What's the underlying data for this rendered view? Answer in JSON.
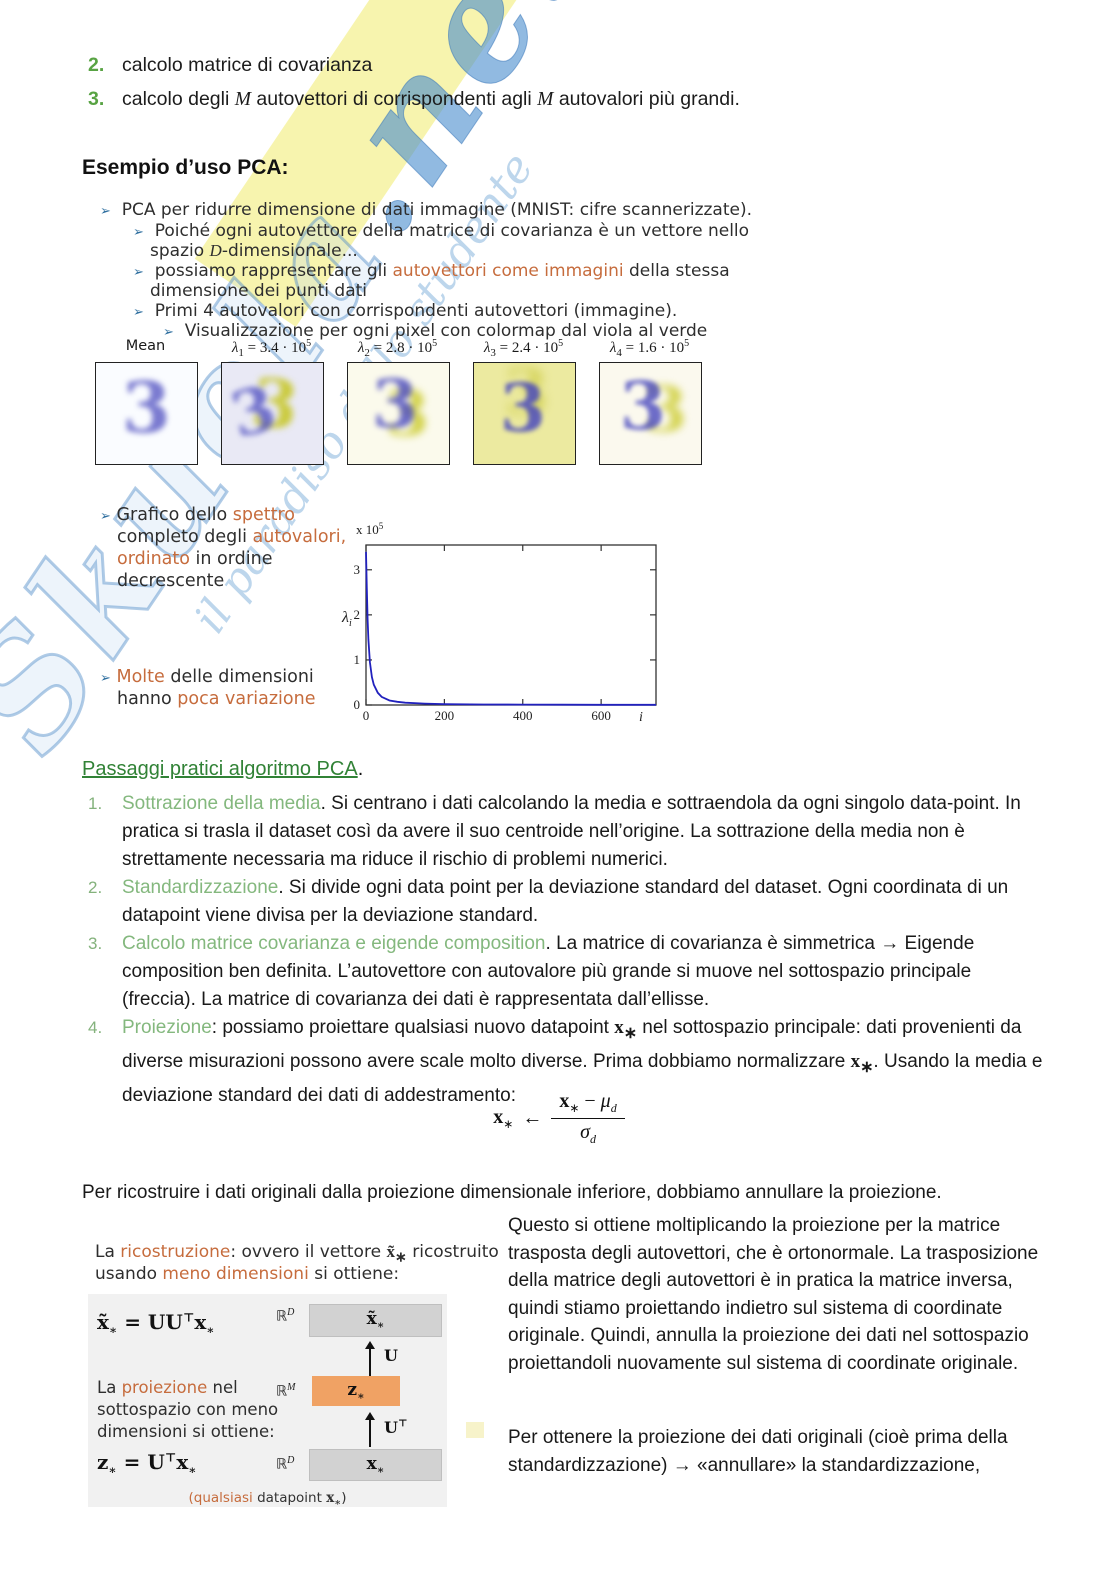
{
  "watermark": {
    "big_left": "Skuola",
    "big_right": ".net",
    "slogan": "il paradiso dello studente"
  },
  "misc": {
    "bullet": "➢"
  },
  "top_list": {
    "item2_num": "2.",
    "item2_text": "calcolo matrice di covarianza",
    "item3_num": "3.",
    "item3_p0": "calcolo degli ",
    "item3_m1": "M",
    "item3_p1": " autovettori di corrispondenti agli ",
    "item3_m2": "M",
    "item3_p2": " autovalori più grandi."
  },
  "example": {
    "heading": "Esempio d’uso PCA",
    "colon": ":",
    "b1": "PCA per ridurre dimensione di dati immagine (MNIST: cifre scannerizzate).",
    "b2_l1": "Poiché ogni autovettore della matrice di covarianza è un vettore nello",
    "b2_pre": "spazio ",
    "b2_D": "D",
    "b2_post": "-dimensionale...",
    "b3_pre": "possiamo rappresentare gli ",
    "b3_orange": "autovettori come immagini",
    "b3_post": " della stessa",
    "b3_l2": "dimensione dei punti dati",
    "b4": "Primi 4 autovalori con corrispondenti autovettori (immagine).",
    "b5": "Visualizzazione per ogni pixel con colormap dal viola al verde"
  },
  "eigen_images": {
    "digit": "3",
    "items": [
      {
        "name": "Mean",
        "style": "background:#fafcff"
      },
      {
        "sym": "λ",
        "sub": "1",
        "eq": " = 3.4 · 10",
        "exp": "5",
        "style": "background:#e9e9f5"
      },
      {
        "sym": "λ",
        "sub": "2",
        "eq": " = 2.8 · 10",
        "exp": "5",
        "style": "background:#fbfaec"
      },
      {
        "sym": "λ",
        "sub": "3",
        "eq": " = 2.4 · 10",
        "exp": "5",
        "style": "background:#eceaa0"
      },
      {
        "sym": "λ",
        "sub": "4",
        "eq": " = 1.6 · 10",
        "exp": "5",
        "style": "background:#fbf9ee"
      }
    ]
  },
  "spectrum": {
    "g_pre": "Grafico dello ",
    "g_o1": "spettro",
    "g_l2_pre": "completo degli ",
    "g_o2": "autovalori,",
    "g_l3_o": "ordinato",
    "g_l3_post": " in ordine",
    "g_l4": "decrescente",
    "m_o1": "Molte",
    "m_p1": " delle dimensioni",
    "m_l2_pre": "hanno ",
    "m_o2": "poca variazione"
  },
  "chart_data": {
    "type": "line",
    "title": "Spettro completo degli autovalori (ordine decrescente)",
    "xlabel": "i",
    "ylabel_sym": "λ",
    "ylabel_sub": "i",
    "scale_base": "x 10",
    "scale_exp": "5",
    "y_scale": "1e5",
    "xlim": [
      0,
      740
    ],
    "ylim": [
      0,
      3.55
    ],
    "xticks": [
      0,
      200,
      400,
      600
    ],
    "yticks": [
      0,
      1,
      2,
      3
    ],
    "x": [
      0,
      2,
      4,
      6,
      10,
      15,
      20,
      30,
      40,
      60,
      80,
      100,
      150,
      200,
      300,
      400,
      500,
      600,
      700,
      740
    ],
    "y": [
      3.4,
      2.6,
      1.9,
      1.45,
      0.95,
      0.62,
      0.45,
      0.27,
      0.18,
      0.1,
      0.07,
      0.05,
      0.03,
      0.02,
      0.012,
      0.008,
      0.006,
      0.005,
      0.004,
      0.004
    ],
    "line_color": "#2121bd",
    "grid": false,
    "legend": null
  },
  "steps": {
    "heading": "Passaggi pratici algoritmo PCA",
    "period": ".",
    "items": [
      {
        "num": "1.",
        "lead": "Sottrazione della media",
        "sep": ". ",
        "text": "Si centrano i dati calcolando la media e sottraendola da ogni singolo data-point. In pratica si trasla il dataset così da avere il suo centroide nell’origine. La sottrazione della media non è strettamente necessaria ma riduce il rischio di problemi numerici."
      },
      {
        "num": "2.",
        "lead": "Standardizzazione",
        "sep": ". ",
        "text": "Si divide ogni data point per la deviazione standard del dataset. Ogni coordinata di un datapoint viene divisa per la deviazione standard."
      },
      {
        "num": "3.",
        "lead": "Calcolo matrice covarianza e eigende composition",
        "sep": ". ",
        "text": "La matrice di covarianza è simmetrica → Eigende composition ben definita. L’autovettore con autovalore più grande si muove nel sottospazio principale (freccia). La matrice di covarianza dei dati è rappresentata dall’ellisse."
      },
      {
        "num": "4.",
        "lead": "Proiezione",
        "sep": ": ",
        "p0": "possiamo proiettare qualsiasi nuovo datapoint ",
        "x1": "x",
        "s1": "∗",
        "p1": " nel sottospazio principale: dati provenienti da diverse misurazioni possono avere scale molto diverse. Prima dobbiamo normalizzare ",
        "x2": "x",
        "s2": "∗",
        "p2": ". Usando la media e deviazione standard dei dati di addestramento:"
      }
    ]
  },
  "formula": {
    "lhs": "x",
    "lhs_sub": "∗",
    "arrow": "←",
    "num_x": "x",
    "num_x_sub": "∗",
    "minus": " − ",
    "mu": "μ",
    "mu_sub": "d",
    "sigma": "σ",
    "sigma_sub": "d"
  },
  "reconstruction": {
    "intro": "Per ricostruire i dati originali dalla proiezione dimensionale inferiore, dobbiamo annullare la proiezione.",
    "left_p0": "La ",
    "left_o1": "ricostruzione",
    "left_p1": ": ovvero il vettore ",
    "left_vec": "x̃",
    "left_vec_sub": "∗",
    "left_p2": " ricostruito",
    "left_l2_p0": "usando ",
    "left_o2": "meno dimensioni",
    "left_l2_p1": " si ottiene:",
    "f1_x": "x̃",
    "f1_xsub": "∗",
    "f1_eq": " = ",
    "f1_U": "UU",
    "f1_T": "⊤",
    "f1_x2": "x",
    "f1_x2sub": "∗",
    "proj_p0": "La ",
    "proj_o": "proiezione",
    "proj_p1": " nel",
    "proj_l2": "sottospazio con meno",
    "proj_l3": "dimensioni si ottiene:",
    "f2_z": "z",
    "f2_zsub": "∗",
    "f2_eq": " = ",
    "f2_U": "U",
    "f2_T": "⊤",
    "f2_x": "x",
    "f2_xsub": "∗",
    "rd_top": "ℝ",
    "rd_top_sup": "D",
    "box_top_x": "x̃",
    "box_top_sub": "∗",
    "arrow1": "U",
    "rm": "ℝ",
    "rm_sup": "M",
    "box_mid_z": "z",
    "box_mid_sub": "∗",
    "arrow2": "U",
    "arrow2_sup": "⊤",
    "rd_bot": "ℝ",
    "rd_bot_sup": "D",
    "box_bot_x": "x",
    "box_bot_sub": "∗",
    "cap_o": "(qualsiasi",
    "cap_p1": " datapoint ",
    "cap_x": "x",
    "cap_sub": "∗",
    "cap_close": ")",
    "right_p1": "Questo si ottiene moltiplicando la proiezione per la matrice trasposta degli autovettori, che è ortonormale. La trasposizione della matrice degli autovettori è in pratica la matrice inversa, quindi stiamo proiettando indietro sul sistema di coordinate originale. Quindi, annulla la proiezione dei dati nel sottospazio proiettandoli nuovamente sul sistema di coordinate originale.",
    "right_p2": "Per ottenere la proiezione dei dati originali (cioè prima della standardizzazione) → «annullare» la standardizzazione,"
  }
}
